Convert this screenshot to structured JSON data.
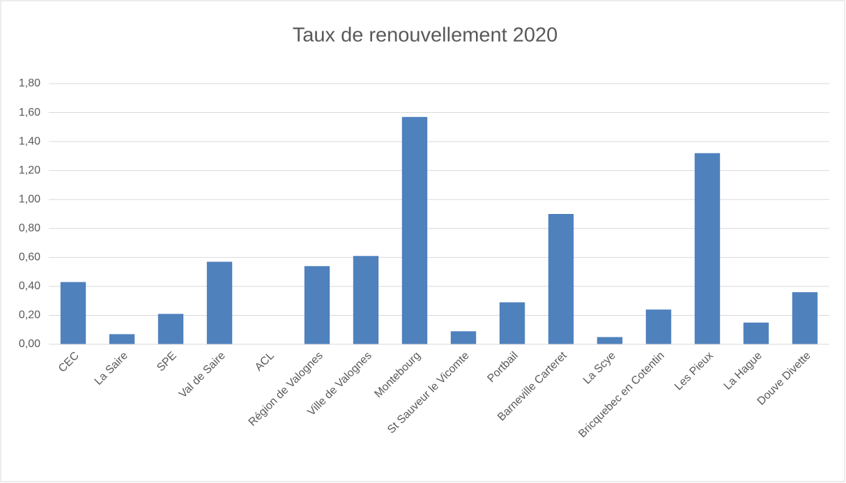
{
  "chart_data": {
    "type": "bar",
    "title": "Taux de renouvellement 2020",
    "categories": [
      "CEC",
      "La Saire",
      "SPE",
      "Val de Saire",
      "ACL",
      "Région de Valognes",
      "Ville de Valognes",
      "Montebourg",
      "St Sauveur le Vicomte",
      "Portbail",
      "Barneville Carteret",
      "La Scye",
      "Bricquebec en Cotentin",
      "Les Pieux",
      "La Hague",
      "Douve Divette"
    ],
    "values": [
      0.43,
      0.07,
      0.21,
      0.57,
      0,
      0.54,
      0.61,
      1.57,
      0.09,
      0.29,
      0.9,
      0.05,
      0.24,
      1.32,
      0.15,
      0.36
    ],
    "color": "#4f81bd",
    "ylim": [
      0,
      1.8
    ],
    "yticks": [
      {
        "value": 0,
        "label": "0,00"
      },
      {
        "value": 0.2,
        "label": "0,20"
      },
      {
        "value": 0.4,
        "label": "0,40"
      },
      {
        "value": 0.6,
        "label": "0,60"
      },
      {
        "value": 0.8,
        "label": "0,80"
      },
      {
        "value": 1.0,
        "label": "1,00"
      },
      {
        "value": 1.2,
        "label": "1,20"
      },
      {
        "value": 1.4,
        "label": "1,40"
      },
      {
        "value": 1.6,
        "label": "1,60"
      },
      {
        "value": 1.8,
        "label": "1,80"
      }
    ],
    "grid": true
  }
}
